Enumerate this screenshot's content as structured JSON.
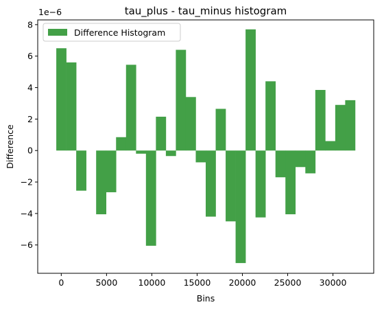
{
  "chart_data": {
    "type": "bar",
    "title": "tau_plus - tau_minus histogram",
    "xlabel": "Bins",
    "ylabel": "Difference",
    "y_scale_exponent_label": "1e−6",
    "y_scale_factor": 1e-06,
    "xlim": [
      -2600,
      34500
    ],
    "ylim": [
      -7.8,
      8.3
    ],
    "x_ticks": [
      0,
      5000,
      10000,
      15000,
      20000,
      25000,
      30000
    ],
    "x_tick_labels": [
      "0",
      "5000",
      "10000",
      "15000",
      "20000",
      "25000",
      "30000"
    ],
    "y_ticks": [
      -6,
      -4,
      -2,
      0,
      2,
      4,
      6,
      8
    ],
    "y_tick_labels": [
      "−6",
      "−4",
      "−2",
      "0",
      "2",
      "4",
      "6",
      "8"
    ],
    "bin_width": 1100,
    "grid": false,
    "legend_position": "top-left",
    "color": "#43a047",
    "series": [
      {
        "name": "Difference Histogram",
        "x": [
          0,
          1100,
          2200,
          3300,
          4400,
          5500,
          6600,
          7700,
          8800,
          9900,
          11000,
          12100,
          13200,
          14300,
          15400,
          16500,
          17600,
          18700,
          19800,
          20900,
          22000,
          23100,
          24200,
          25300,
          26400,
          27500,
          28600,
          29700,
          30800,
          31900
        ],
        "values": [
          6.5,
          5.6,
          -2.55,
          0,
          -4.05,
          -2.65,
          0.85,
          5.45,
          -0.2,
          -6.05,
          2.15,
          -0.35,
          6.4,
          3.4,
          -0.75,
          -4.2,
          2.65,
          -4.5,
          -7.15,
          7.7,
          -4.25,
          4.4,
          -1.7,
          -4.05,
          -1.05,
          -1.45,
          3.85,
          0.6,
          2.9,
          3.2
        ]
      }
    ]
  }
}
